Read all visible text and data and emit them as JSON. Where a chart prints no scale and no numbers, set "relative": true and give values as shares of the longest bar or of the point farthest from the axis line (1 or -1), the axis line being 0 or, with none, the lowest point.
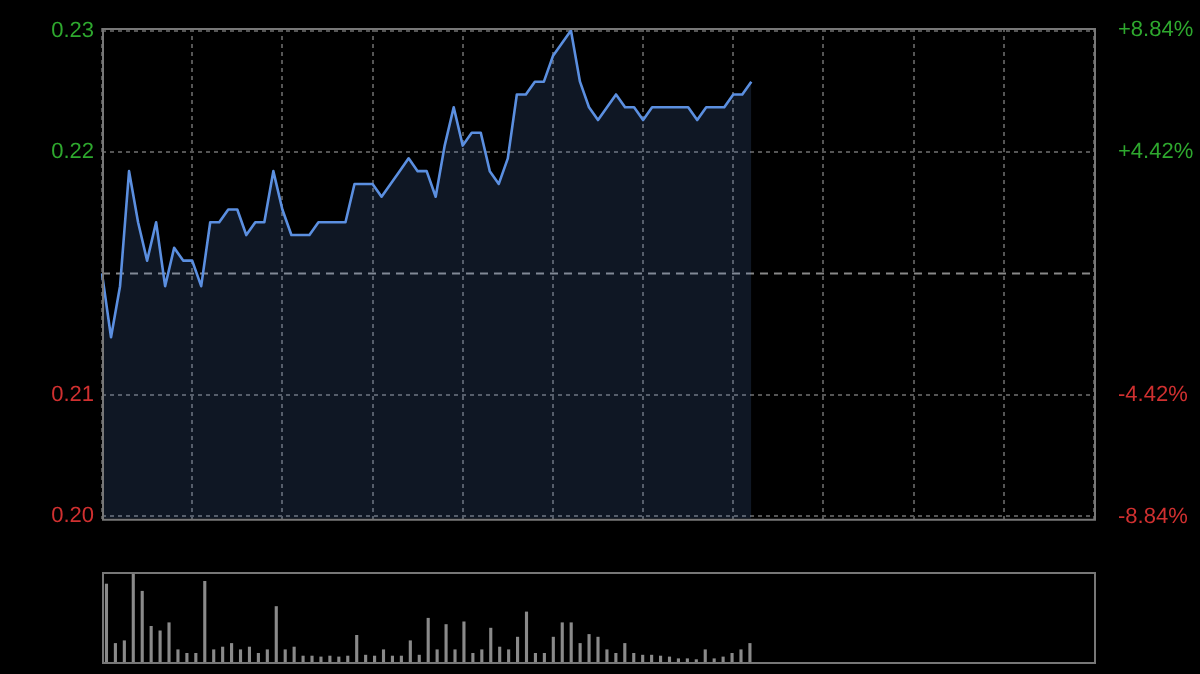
{
  "chart_data": [
    {
      "type": "area",
      "categories": [
        null,
        null,
        null,
        null,
        null,
        null,
        null,
        null,
        null,
        null,
        null,
        null,
        null,
        null,
        null,
        null,
        null,
        null,
        null,
        null,
        null,
        null,
        null,
        null,
        null,
        null,
        null,
        null,
        null,
        null,
        null,
        null,
        null,
        null,
        null,
        null,
        null,
        null,
        null,
        null,
        null,
        null,
        null,
        null,
        null,
        null,
        null,
        null,
        null,
        null,
        null,
        null,
        null,
        null,
        null,
        null,
        null,
        null,
        null,
        null,
        null,
        null,
        null,
        null,
        null,
        null,
        null,
        null,
        null,
        null,
        null,
        null,
        null,
        null,
        null,
        null,
        null,
        null,
        null,
        null,
        null,
        null,
        null,
        null,
        null,
        null,
        null,
        null,
        null,
        null,
        null,
        null,
        null,
        null,
        null,
        null,
        null,
        null,
        null,
        null,
        null,
        null,
        null,
        null,
        null,
        null,
        null,
        null,
        null,
        null,
        null
      ],
      "series": [
        {
          "color": "#5b8fe0",
          "values": [
            0.215,
            0.21,
            0.214,
            0.223,
            0.219,
            0.216,
            0.219,
            0.214,
            0.217,
            0.216,
            0.216,
            0.214,
            0.219,
            0.219,
            0.22,
            0.22,
            0.218,
            0.219,
            0.219,
            0.223,
            0.22,
            0.218,
            0.218,
            0.218,
            0.219,
            0.219,
            0.219,
            0.219,
            0.222,
            0.222,
            0.222,
            0.221,
            0.222,
            0.223,
            0.224,
            0.223,
            0.223,
            0.221,
            0.225,
            0.228,
            0.225,
            0.226,
            0.226,
            0.223,
            0.222,
            0.224,
            0.229,
            0.229,
            0.23,
            0.23,
            0.232,
            0.233,
            0.234,
            0.23,
            0.228,
            0.227,
            0.228,
            0.229,
            0.228,
            0.228,
            0.227,
            0.228,
            0.228,
            0.228,
            0.228,
            0.228,
            0.227,
            0.228,
            0.228,
            0.228,
            0.229,
            0.229,
            0.23,
            null,
            null,
            null,
            null,
            null,
            null,
            null,
            null,
            null,
            null,
            null,
            null,
            null,
            null,
            null,
            null,
            null,
            null,
            null,
            null,
            null,
            null,
            null,
            null,
            null,
            null,
            null,
            null,
            null,
            null,
            null,
            null,
            null,
            null,
            null,
            null,
            null,
            null
          ]
        }
      ],
      "ylim": [
        0.1958,
        0.2342
      ],
      "yticks": [
        {
          "value": 0.234,
          "label": "0.23"
        },
        {
          "value": 0.2245,
          "label": "0.22"
        },
        {
          "value": 0.2055,
          "label": "0.21"
        },
        {
          "value": 0.196,
          "label": "0.20"
        }
      ],
      "y2lim": [
        -8.92,
        8.92
      ],
      "y2ticks": [
        {
          "value": 8.84,
          "label": "+8.84%"
        },
        {
          "value": 4.42,
          "label": "+4.42%"
        },
        {
          "value": -4.42,
          "label": "-4.42%"
        },
        {
          "value": -8.84,
          "label": "-8.84%"
        }
      ],
      "ref_lines": [
        {
          "axis": "y",
          "value": 0.215,
          "line_style": "dashed",
          "color": "#888888"
        }
      ],
      "grid": true,
      "tick_labels": "y",
      "legend": false,
      "marker": "none",
      "line_style": "solid"
    },
    {
      "type": "bar",
      "relative": true,
      "categories": [
        null,
        null,
        null,
        null,
        null,
        null,
        null,
        null,
        null,
        null,
        null,
        null,
        null,
        null,
        null,
        null,
        null,
        null,
        null,
        null,
        null,
        null,
        null,
        null,
        null,
        null,
        null,
        null,
        null,
        null,
        null,
        null,
        null,
        null,
        null,
        null,
        null,
        null,
        null,
        null,
        null,
        null,
        null,
        null,
        null,
        null,
        null,
        null,
        null,
        null,
        null,
        null,
        null,
        null,
        null,
        null,
        null,
        null,
        null,
        null,
        null,
        null,
        null,
        null,
        null,
        null,
        null,
        null,
        null,
        null,
        null,
        null,
        null,
        null,
        null,
        null,
        null,
        null,
        null,
        null,
        null,
        null,
        null,
        null,
        null,
        null,
        null,
        null,
        null,
        null,
        null,
        null,
        null,
        null,
        null,
        null,
        null,
        null,
        null,
        null,
        null,
        null,
        null,
        null,
        null,
        null,
        null,
        null,
        null,
        null,
        null
      ],
      "color": "#8a8a8a",
      "values": [
        0.87,
        0.21,
        0.24,
        1,
        0.79,
        0.4,
        0.35,
        0.44,
        0.14,
        0.1,
        0.1,
        0.9,
        0.14,
        0.17,
        0.21,
        0.14,
        0.17,
        0.1,
        0.14,
        0.62,
        0.14,
        0.17,
        0.07,
        0.07,
        0.06,
        0.07,
        0.06,
        0.07,
        0.3,
        0.08,
        0.07,
        0.14,
        0.07,
        0.07,
        0.24,
        0.08,
        0.49,
        0.14,
        0.42,
        0.14,
        0.45,
        0.1,
        0.14,
        0.38,
        0.17,
        0.14,
        0.28,
        0.56,
        0.1,
        0.1,
        0.28,
        0.44,
        0.44,
        0.21,
        0.31,
        0.28,
        0.14,
        0.1,
        0.21,
        0.1,
        0.08,
        0.08,
        0.07,
        0.06,
        0.04,
        0.04,
        0.03,
        0.14,
        0.04,
        0.06,
        0.1,
        0.14,
        0.21,
        null,
        null,
        null,
        null,
        null,
        null,
        null,
        null,
        null,
        null,
        null,
        null,
        null,
        null,
        null,
        null,
        null,
        null,
        null,
        null,
        null,
        null,
        null,
        null,
        null,
        null,
        null,
        null,
        null,
        null,
        null,
        null,
        null,
        null,
        null,
        null,
        null,
        null
      ],
      "grid": false,
      "legend": false,
      "tick_labels": false
    }
  ]
}
